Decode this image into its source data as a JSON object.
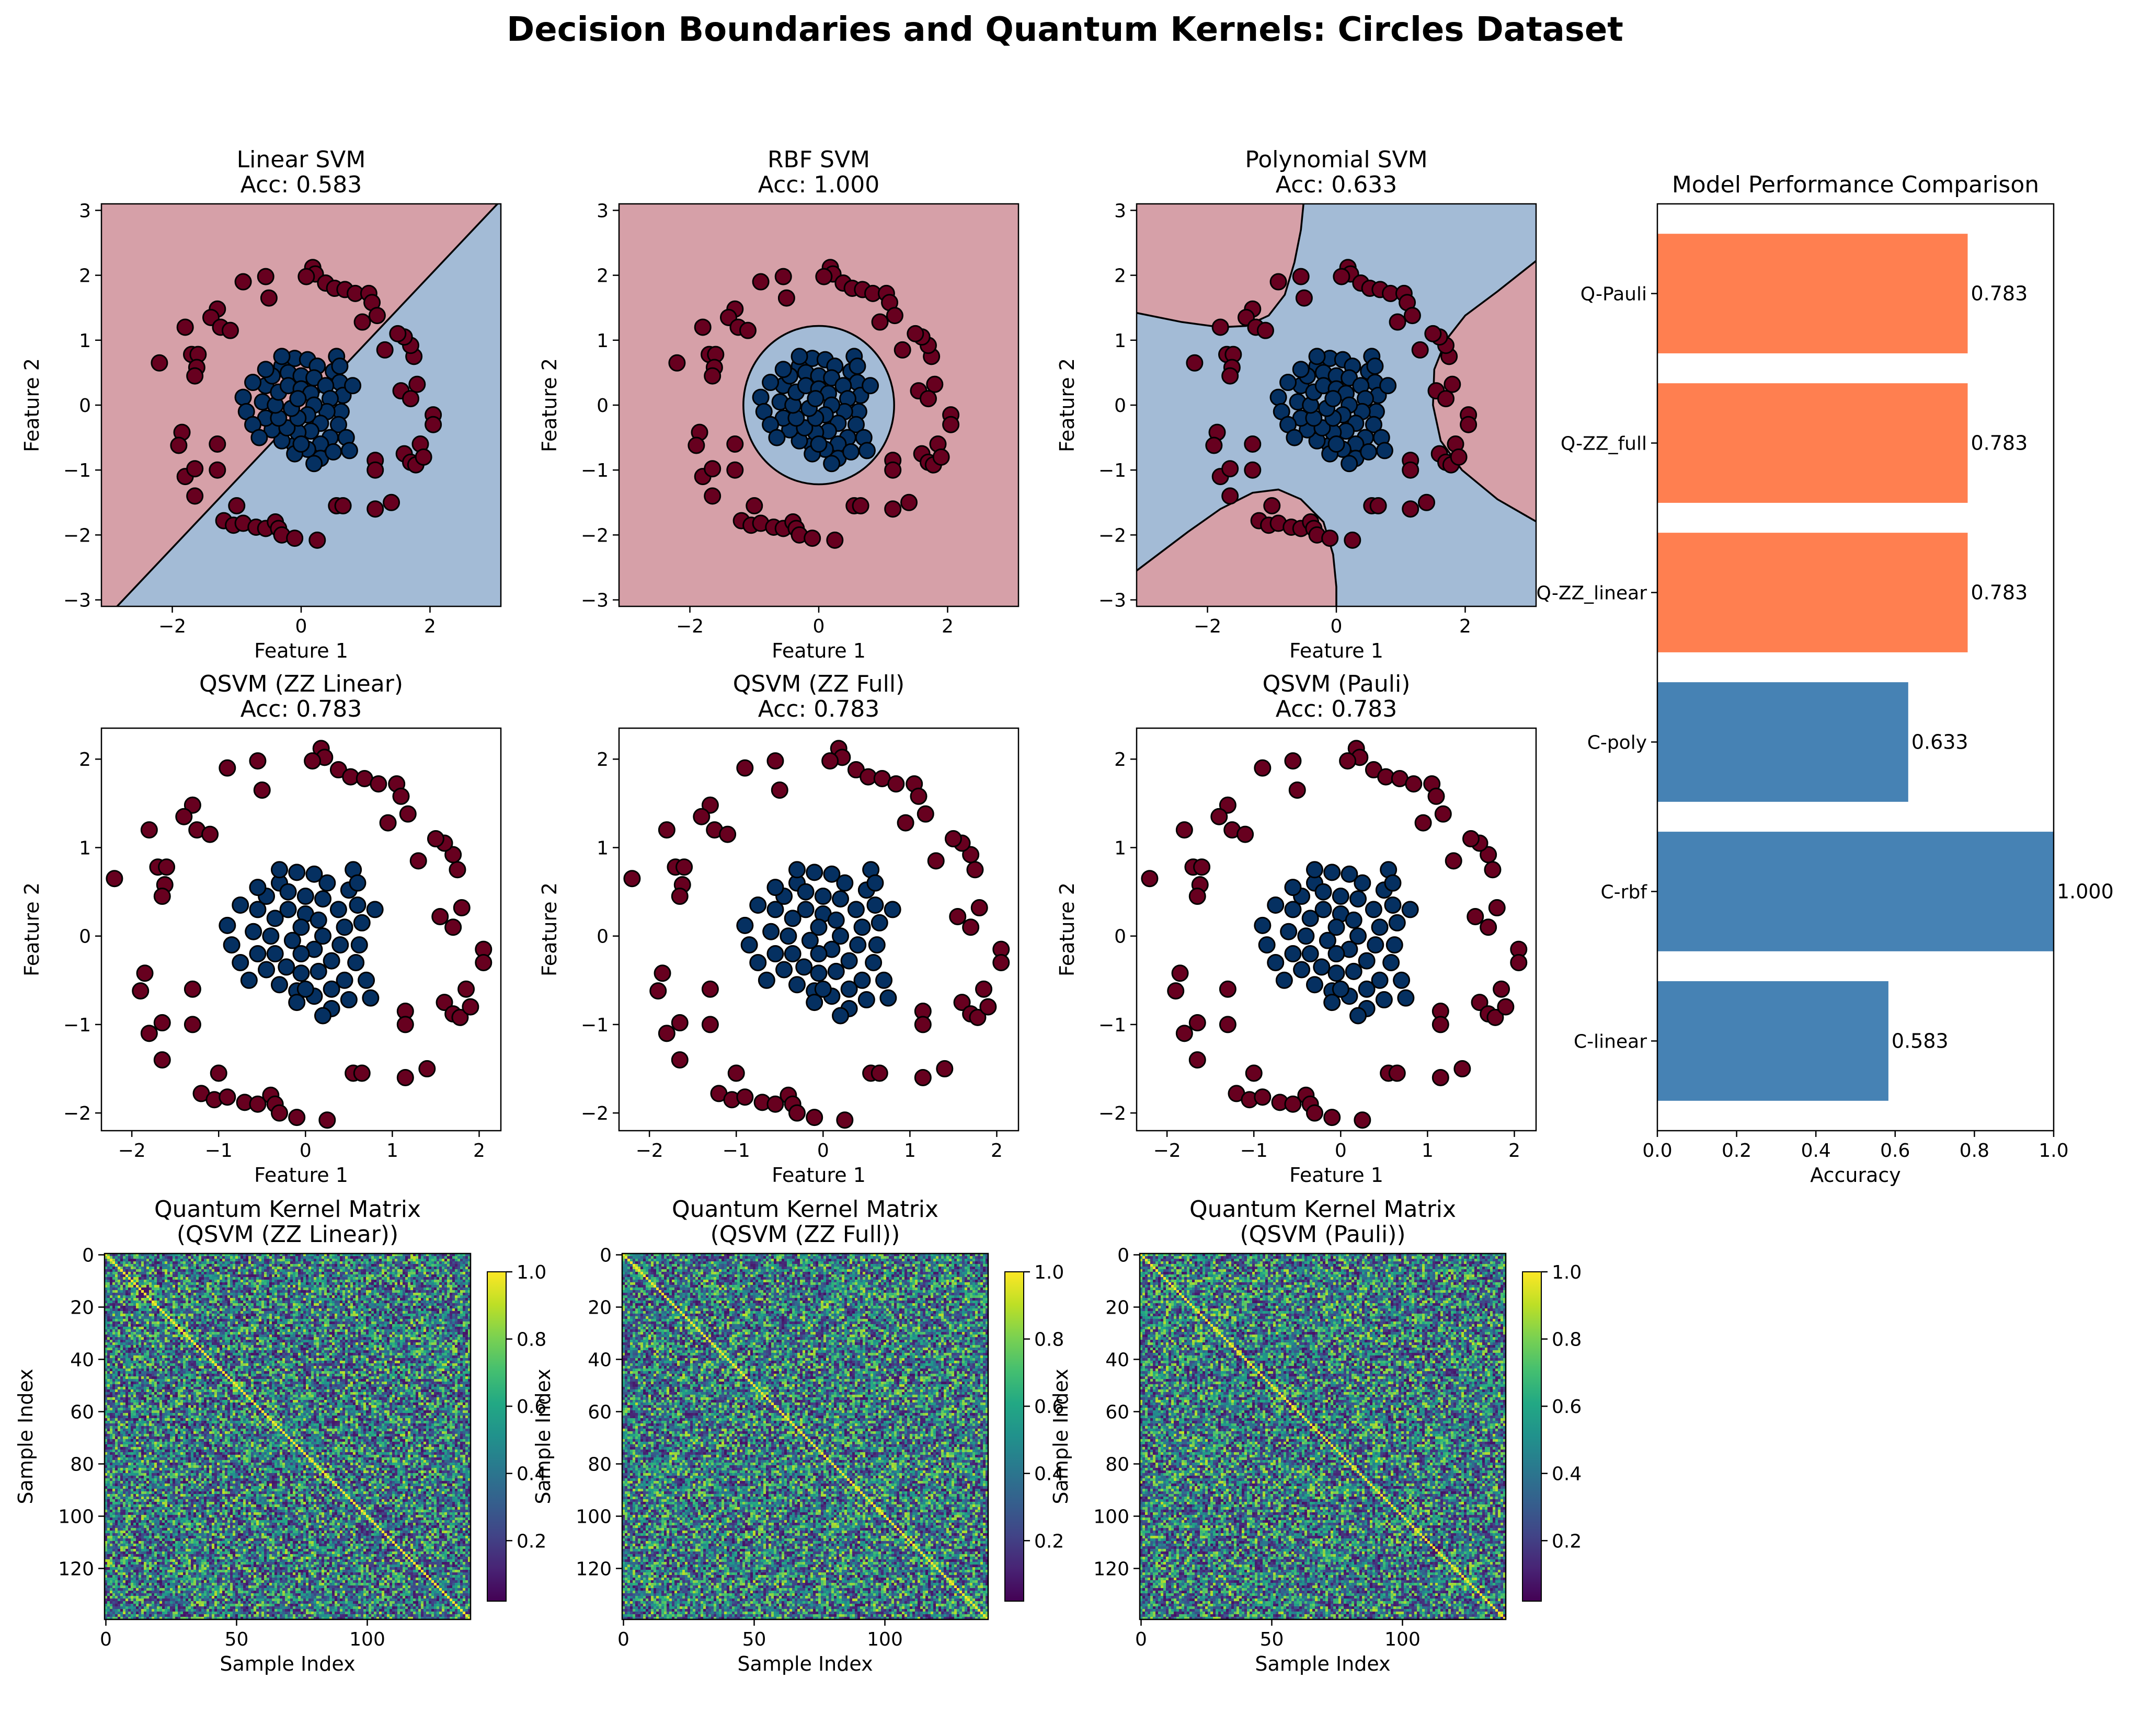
{
  "figure": {
    "title": "Decision Boundaries and Quantum Kernels: Circles Dataset"
  },
  "colors": {
    "class0": "#67001f",
    "class1": "#053061",
    "region_red": "#d6a0a8",
    "region_blue": "#a3bbd6",
    "quantum_bar": "#ff7f50",
    "classical_bar": "#4682b4"
  },
  "chart_data": [
    {
      "type": "scatter",
      "panel": "classical",
      "model": "linear",
      "title": "Linear SVM\nAcc: 0.583",
      "xlabel": "Feature 1",
      "ylabel": "Feature 2",
      "xlim": [
        -3.1,
        3.1
      ],
      "ylim": [
        -3.1,
        3.1
      ],
      "xticks": [
        -2,
        0,
        2
      ],
      "yticks": [
        -3,
        -2,
        -1,
        0,
        1,
        2,
        3
      ],
      "boundary": "line",
      "points_ref": "points"
    },
    {
      "type": "scatter",
      "panel": "classical",
      "model": "rbf",
      "title": "RBF SVM\nAcc: 1.000",
      "xlabel": "Feature 1",
      "ylabel": "Feature 2",
      "xlim": [
        -3.1,
        3.1
      ],
      "ylim": [
        -3.1,
        3.1
      ],
      "xticks": [
        -2,
        0,
        2
      ],
      "yticks": [
        -3,
        -2,
        -1,
        0,
        1,
        2,
        3
      ],
      "boundary": "circle",
      "points_ref": "points"
    },
    {
      "type": "scatter",
      "panel": "classical",
      "model": "poly",
      "title": "Polynomial SVM\nAcc: 0.633",
      "xlabel": "Feature 1",
      "ylabel": "Feature 2",
      "xlim": [
        -3.1,
        3.1
      ],
      "ylim": [
        -3.1,
        3.1
      ],
      "xticks": [
        -2,
        0,
        2
      ],
      "yticks": [
        -3,
        -2,
        -1,
        0,
        1,
        2,
        3
      ],
      "boundary": "poly",
      "points_ref": "points"
    },
    {
      "type": "scatter",
      "panel": "quantum",
      "title": "QSVM (ZZ Linear)\nAcc: 0.783",
      "xlabel": "Feature 1",
      "ylabel": "Feature 2",
      "xlim": [
        -2.35,
        2.25
      ],
      "ylim": [
        -2.2,
        2.35
      ],
      "xticks": [
        -2,
        -1,
        0,
        1,
        2
      ],
      "yticks": [
        -2,
        -1,
        0,
        1,
        2
      ],
      "points_ref": "points"
    },
    {
      "type": "scatter",
      "panel": "quantum",
      "title": "QSVM (ZZ Full)\nAcc: 0.783",
      "xlabel": "Feature 1",
      "ylabel": "Feature 2",
      "xlim": [
        -2.35,
        2.25
      ],
      "ylim": [
        -2.2,
        2.35
      ],
      "xticks": [
        -2,
        -1,
        0,
        1,
        2
      ],
      "yticks": [
        -2,
        -1,
        0,
        1,
        2
      ],
      "points_ref": "points"
    },
    {
      "type": "scatter",
      "panel": "quantum",
      "title": "QSVM (Pauli)\nAcc: 0.783",
      "xlabel": "Feature 1",
      "ylabel": "Feature 2",
      "xlim": [
        -2.35,
        2.25
      ],
      "ylim": [
        -2.2,
        2.35
      ],
      "xticks": [
        -2,
        -1,
        0,
        1,
        2
      ],
      "yticks": [
        -2,
        -1,
        0,
        1,
        2
      ],
      "points_ref": "points"
    },
    {
      "type": "bar",
      "orientation": "horizontal",
      "title": "Model Performance Comparison",
      "xlabel": "Accuracy",
      "ylabel": "",
      "xlim": [
        0,
        1.0
      ],
      "xticks": [
        "0.0",
        "0.2",
        "0.4",
        "0.6",
        "0.8",
        "1.0"
      ],
      "categories": [
        "C-linear",
        "C-rbf",
        "C-poly",
        "Q-ZZ_linear",
        "Q-ZZ_full",
        "Q-Pauli"
      ],
      "values": [
        0.583,
        1.0,
        0.633,
        0.783,
        0.783,
        0.783
      ],
      "value_labels": [
        "0.583",
        "1.000",
        "0.633",
        "0.783",
        "0.783",
        "0.783"
      ],
      "bar_colors": [
        "#4682b4",
        "#4682b4",
        "#4682b4",
        "#ff7f50",
        "#ff7f50",
        "#ff7f50"
      ]
    },
    {
      "type": "heatmap",
      "title": "Quantum Kernel Matrix\n(QSVM (ZZ Linear))",
      "xlabel": "Sample Index",
      "ylabel": "Sample Index",
      "size": 140,
      "xticks": [
        0,
        50,
        100
      ],
      "yticks": [
        0,
        20,
        40,
        60,
        80,
        100,
        120
      ],
      "colorbar_ticks": [
        "0.2",
        "0.4",
        "0.6",
        "0.8",
        "1.0"
      ],
      "colormap": "viridis",
      "seed": 11
    },
    {
      "type": "heatmap",
      "title": "Quantum Kernel Matrix\n(QSVM (ZZ Full))",
      "xlabel": "Sample Index",
      "ylabel": "Sample Index",
      "size": 140,
      "xticks": [
        0,
        50,
        100
      ],
      "yticks": [
        0,
        20,
        40,
        60,
        80,
        100,
        120
      ],
      "colorbar_ticks": [
        "0.2",
        "0.4",
        "0.6",
        "0.8",
        "1.0"
      ],
      "colormap": "viridis",
      "seed": 23
    },
    {
      "type": "heatmap",
      "title": "Quantum Kernel Matrix\n(QSVM (Pauli))",
      "xlabel": "Sample Index",
      "ylabel": "Sample Index",
      "size": 140,
      "xticks": [
        0,
        50,
        100
      ],
      "yticks": [
        0,
        20,
        40,
        60,
        80,
        100,
        120
      ],
      "colorbar_ticks": [
        "0.2",
        "0.4",
        "0.6",
        "0.8",
        "1.0"
      ],
      "colormap": "viridis",
      "seed": 37
    }
  ],
  "points": {
    "class0": [
      [
        0.18,
        2.12
      ],
      [
        0.22,
        2.02
      ],
      [
        0.08,
        1.98
      ],
      [
        0.38,
        1.88
      ],
      [
        0.52,
        1.8
      ],
      [
        0.68,
        1.78
      ],
      [
        0.84,
        1.72
      ],
      [
        1.05,
        1.72
      ],
      [
        1.1,
        1.58
      ],
      [
        -0.55,
        1.98
      ],
      [
        -0.9,
        1.9
      ],
      [
        -0.5,
        1.65
      ],
      [
        -1.3,
        1.48
      ],
      [
        -1.4,
        1.35
      ],
      [
        -1.25,
        1.2
      ],
      [
        -1.1,
        1.15
      ],
      [
        -1.8,
        1.2
      ],
      [
        -1.7,
        0.78
      ],
      [
        -1.6,
        0.78
      ],
      [
        -1.62,
        0.58
      ],
      [
        -1.65,
        0.45
      ],
      [
        -2.2,
        0.65
      ],
      [
        -1.85,
        -0.42
      ],
      [
        -1.9,
        -0.62
      ],
      [
        -1.8,
        -1.1
      ],
      [
        -1.65,
        -0.98
      ],
      [
        -1.3,
        -1.0
      ],
      [
        -1.3,
        -0.6
      ],
      [
        -1.65,
        -1.4
      ],
      [
        -1.0,
        -1.55
      ],
      [
        -1.2,
        -1.78
      ],
      [
        -1.05,
        -1.85
      ],
      [
        -0.9,
        -1.82
      ],
      [
        -0.7,
        -1.88
      ],
      [
        -0.55,
        -1.9
      ],
      [
        -0.4,
        -1.8
      ],
      [
        -0.35,
        -1.9
      ],
      [
        -0.3,
        -2.0
      ],
      [
        -0.1,
        -2.05
      ],
      [
        0.25,
        -2.08
      ],
      [
        0.55,
        -1.55
      ],
      [
        1.15,
        -1.6
      ],
      [
        1.4,
        -1.5
      ],
      [
        1.15,
        -0.85
      ],
      [
        1.15,
        -1.0
      ],
      [
        1.6,
        -0.75
      ],
      [
        1.7,
        -0.88
      ],
      [
        1.78,
        -0.92
      ],
      [
        1.85,
        -0.6
      ],
      [
        1.9,
        -0.8
      ],
      [
        2.05,
        -0.15
      ],
      [
        2.05,
        -0.3
      ],
      [
        1.8,
        0.32
      ],
      [
        1.55,
        0.22
      ],
      [
        1.7,
        0.1
      ],
      [
        1.75,
        0.75
      ],
      [
        1.7,
        0.92
      ],
      [
        1.6,
        1.05
      ],
      [
        1.5,
        1.1
      ],
      [
        1.3,
        0.85
      ],
      [
        1.18,
        1.38
      ],
      [
        0.95,
        1.28
      ],
      [
        0.65,
        -1.55
      ]
    ],
    "class1": [
      [
        -0.3,
        0.6
      ],
      [
        -0.1,
        0.72
      ],
      [
        0.1,
        0.7
      ],
      [
        0.25,
        0.6
      ],
      [
        0.5,
        0.52
      ],
      [
        0.6,
        0.35
      ],
      [
        0.65,
        0.15
      ],
      [
        0.62,
        -0.1
      ],
      [
        0.58,
        -0.3
      ],
      [
        0.45,
        -0.5
      ],
      [
        0.3,
        -0.6
      ],
      [
        0.1,
        -0.68
      ],
      [
        -0.1,
        -0.62
      ],
      [
        -0.3,
        -0.55
      ],
      [
        -0.45,
        -0.38
      ],
      [
        -0.55,
        -0.2
      ],
      [
        -0.6,
        0.05
      ],
      [
        -0.55,
        0.3
      ],
      [
        -0.45,
        0.45
      ],
      [
        -0.2,
        0.5
      ],
      [
        0.0,
        0.45
      ],
      [
        0.2,
        0.42
      ],
      [
        0.38,
        0.3
      ],
      [
        0.45,
        0.1
      ],
      [
        0.4,
        -0.1
      ],
      [
        0.3,
        -0.28
      ],
      [
        0.15,
        -0.4
      ],
      [
        -0.05,
        -0.42
      ],
      [
        -0.22,
        -0.35
      ],
      [
        -0.35,
        -0.2
      ],
      [
        -0.4,
        0.0
      ],
      [
        -0.35,
        0.2
      ],
      [
        -0.2,
        0.3
      ],
      [
        0.0,
        0.25
      ],
      [
        0.15,
        0.18
      ],
      [
        0.2,
        0.0
      ],
      [
        0.1,
        -0.15
      ],
      [
        -0.05,
        -0.2
      ],
      [
        -0.15,
        -0.05
      ],
      [
        -0.05,
        0.1
      ],
      [
        -0.9,
        0.12
      ],
      [
        -0.85,
        -0.1
      ],
      [
        -0.75,
        -0.3
      ],
      [
        -0.65,
        -0.5
      ],
      [
        -0.3,
        0.75
      ],
      [
        0.55,
        0.75
      ],
      [
        0.7,
        -0.5
      ],
      [
        0.75,
        -0.7
      ],
      [
        0.3,
        -0.82
      ],
      [
        0.2,
        -0.9
      ],
      [
        -0.1,
        -0.75
      ],
      [
        -0.55,
        0.55
      ],
      [
        -0.75,
        0.35
      ],
      [
        0.8,
        0.3
      ],
      [
        0.5,
        -0.72
      ],
      [
        0.0,
        -0.6
      ],
      [
        0.6,
        0.6
      ]
    ]
  }
}
